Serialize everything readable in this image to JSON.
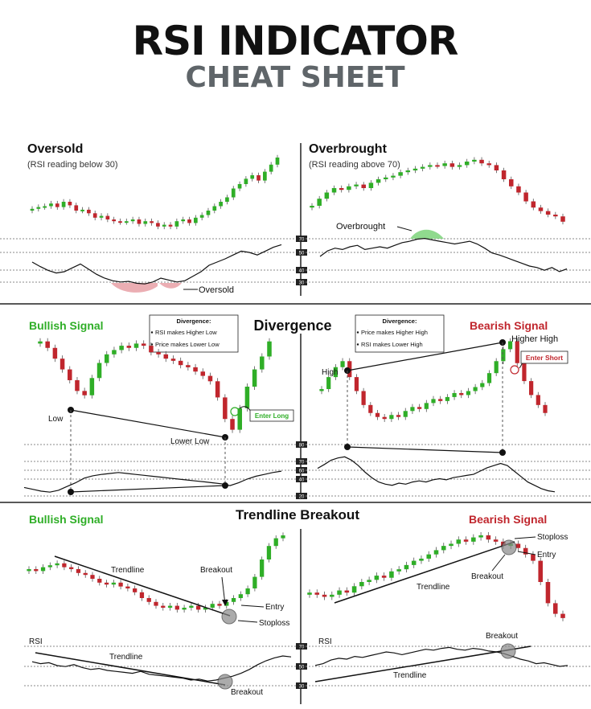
{
  "header": {
    "title": "RSI INDICATOR",
    "subtitle": "CHEAT SHEET"
  },
  "colors": {
    "bull": "#2fae27",
    "bear": "#c0262d",
    "sub_gray": "#5f6569",
    "text": "#111111"
  },
  "sections": {
    "divergence": "Divergence",
    "trendline_breakout": "Trendline Breakout"
  },
  "chart_data": [
    {
      "type": "candlestick",
      "title": "Oversold",
      "subtitle": "(RSI reading below 30)",
      "price_series": [
        0.32,
        0.34,
        0.35,
        0.38,
        0.34,
        0.4,
        0.36,
        0.3,
        0.31,
        0.27,
        0.22,
        0.24,
        0.2,
        0.18,
        0.17,
        0.18,
        0.2,
        0.15,
        0.18,
        0.16,
        0.12,
        0.14,
        0.12,
        0.18,
        0.2,
        0.16,
        0.22,
        0.25,
        0.3,
        0.35,
        0.4,
        0.45,
        0.55,
        0.6,
        0.66,
        0.7,
        0.64,
        0.74,
        0.82,
        0.9
      ],
      "rsi_levels": [
        "70",
        "50",
        "40",
        "30"
      ],
      "rsi_series": [
        55,
        48,
        42,
        38,
        40,
        46,
        52,
        44,
        36,
        30,
        26,
        24,
        25,
        22,
        21,
        24,
        30,
        27,
        24,
        26,
        33,
        40,
        50,
        55,
        60,
        66,
        72,
        70,
        66,
        72,
        78,
        82
      ],
      "rsi_highlight": "below 30",
      "annotations": [
        "Oversold"
      ]
    },
    {
      "type": "candlestick",
      "title": "Overbrought",
      "subtitle": "(RSI reading above 70)",
      "price_series": [
        0.4,
        0.48,
        0.55,
        0.6,
        0.58,
        0.62,
        0.64,
        0.6,
        0.66,
        0.7,
        0.72,
        0.74,
        0.78,
        0.8,
        0.82,
        0.84,
        0.86,
        0.85,
        0.88,
        0.84,
        0.86,
        0.9,
        0.92,
        0.88,
        0.86,
        0.8,
        0.7,
        0.62,
        0.55,
        0.45,
        0.38,
        0.34,
        0.3,
        0.28,
        0.22
      ],
      "rsi_levels": [
        "70",
        "50",
        "40",
        "30"
      ],
      "rsi_series": [
        50,
        58,
        62,
        60,
        64,
        66,
        60,
        62,
        64,
        62,
        66,
        70,
        72,
        75,
        76,
        74,
        72,
        70,
        68,
        70,
        72,
        68,
        62,
        55,
        52,
        48,
        44,
        40,
        36,
        34,
        30,
        34,
        28,
        32
      ],
      "rsi_highlight": "above 70",
      "annotations": [
        "Overbrought"
      ]
    },
    {
      "type": "candlestick",
      "title": "Bullish Signal",
      "section": "Divergence",
      "price_series": [
        0.92,
        0.86,
        0.76,
        0.66,
        0.56,
        0.46,
        0.42,
        0.58,
        0.72,
        0.8,
        0.84,
        0.88,
        0.86,
        0.9,
        0.88,
        0.82,
        0.8,
        0.76,
        0.74,
        0.7,
        0.68,
        0.64,
        0.6,
        0.55,
        0.4,
        0.2,
        0.1,
        0.3,
        0.5,
        0.66,
        0.78,
        0.92
      ],
      "rsi_levels": [
        "80",
        "70",
        "60",
        "40",
        "20"
      ],
      "rsi_series": [
        20,
        16,
        12,
        10,
        14,
        22,
        30,
        40,
        45,
        48,
        50,
        52,
        50,
        48,
        46,
        44,
        42,
        40,
        38,
        36,
        34,
        32,
        30,
        28,
        24,
        30,
        38,
        44,
        48,
        52,
        55
      ],
      "legend_box": {
        "heading": "Divergence:",
        "items": [
          "RSI makes Higher Low",
          "Price makes Lower Low"
        ]
      },
      "annotations": [
        "Low",
        "Lower Low",
        "Enter Long"
      ]
    },
    {
      "type": "candlestick",
      "title": "Bearish Signal",
      "section": "Divergence",
      "price_series": [
        0.5,
        0.62,
        0.72,
        0.78,
        0.62,
        0.48,
        0.34,
        0.26,
        0.22,
        0.2,
        0.24,
        0.22,
        0.28,
        0.32,
        0.3,
        0.36,
        0.4,
        0.38,
        0.42,
        0.46,
        0.44,
        0.48,
        0.52,
        0.56,
        0.66,
        0.78,
        0.9,
        0.98,
        0.76,
        0.58,
        0.44,
        0.34,
        0.26
      ],
      "rsi_levels": [
        "80",
        "70",
        "60",
        "40",
        "20"
      ],
      "rsi_series": [
        55,
        62,
        70,
        74,
        76,
        70,
        60,
        48,
        38,
        30,
        26,
        24,
        28,
        26,
        30,
        32,
        30,
        34,
        36,
        34,
        38,
        40,
        42,
        44,
        50,
        56,
        60,
        64,
        60,
        50,
        40,
        30,
        24,
        18,
        14,
        12
      ],
      "legend_box": {
        "heading": "Divergence:",
        "items": [
          "Price makes Higher High",
          "RSI makes Lower High"
        ]
      },
      "annotations": [
        "High",
        "Higher High",
        "Enter Short"
      ]
    },
    {
      "type": "candlestick",
      "title": "Bullish Signal",
      "section": "Trendline Breakout",
      "rsi_label": "RSI",
      "price_series": [
        0.6,
        0.58,
        0.62,
        0.64,
        0.66,
        0.62,
        0.6,
        0.56,
        0.54,
        0.5,
        0.46,
        0.44,
        0.46,
        0.42,
        0.4,
        0.36,
        0.3,
        0.26,
        0.22,
        0.2,
        0.22,
        0.18,
        0.2,
        0.22,
        0.18,
        0.2,
        0.24,
        0.22,
        0.26,
        0.3,
        0.34,
        0.4,
        0.52,
        0.7,
        0.84,
        0.92,
        0.95
      ],
      "rsi_levels": [
        "70",
        "50",
        "30"
      ],
      "rsi_series": [
        68,
        64,
        66,
        60,
        58,
        62,
        56,
        52,
        54,
        50,
        48,
        46,
        44,
        48,
        42,
        40,
        38,
        36,
        34,
        30,
        32,
        28,
        30,
        34,
        38,
        44,
        52,
        62,
        70,
        76,
        80,
        78
      ],
      "annotations": [
        "Trendline",
        "Breakout",
        "Entry",
        "Stoploss",
        "Trendline",
        "Breakout"
      ]
    },
    {
      "type": "candlestick",
      "title": "Bearish Signal",
      "section": "Trendline Breakout",
      "rsi_label": "RSI",
      "price_series": [
        0.4,
        0.38,
        0.36,
        0.38,
        0.42,
        0.4,
        0.46,
        0.5,
        0.52,
        0.56,
        0.54,
        0.6,
        0.62,
        0.66,
        0.7,
        0.72,
        0.76,
        0.8,
        0.84,
        0.86,
        0.9,
        0.88,
        0.92,
        0.94,
        0.9,
        0.88,
        0.84,
        0.86,
        0.82,
        0.76,
        0.7,
        0.5,
        0.3,
        0.2,
        0.16
      ],
      "rsi_levels": [
        "70",
        "50",
        "30"
      ],
      "rsi_series": [
        36,
        40,
        48,
        52,
        50,
        56,
        54,
        58,
        62,
        66,
        64,
        60,
        64,
        68,
        72,
        70,
        74,
        76,
        72,
        70,
        74,
        72,
        68,
        66,
        62,
        56,
        50,
        46,
        40,
        42,
        38,
        34,
        36
      ],
      "annotations": [
        "Stoploss",
        "Entry",
        "Breakout",
        "Trendline",
        "Breakout",
        "Trendline"
      ]
    }
  ]
}
